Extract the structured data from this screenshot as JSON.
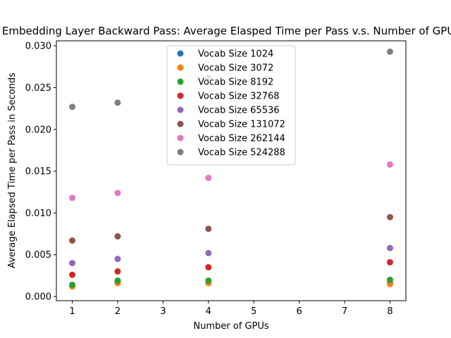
{
  "chart_data": {
    "type": "scatter",
    "title": "Embedding Layer Backward Pass: Average Elasped Time per Pass v.s. Number of GPUs",
    "xlabel": "Number of GPUs",
    "ylabel": "Average Elapsed Time per Pass in Seconds",
    "xlim": [
      0.65,
      8.35
    ],
    "ylim": [
      -0.0005,
      0.0306
    ],
    "xticks": [
      1,
      2,
      3,
      4,
      5,
      6,
      7,
      8
    ],
    "xtick_labels": [
      "1",
      "2",
      "3",
      "4",
      "5",
      "6",
      "7",
      "8"
    ],
    "yticks": [
      0,
      0.005,
      0.01,
      0.015,
      0.02,
      0.025,
      0.03
    ],
    "ytick_labels": [
      "0.000",
      "0.005",
      "0.010",
      "0.015",
      "0.020",
      "0.025",
      "0.030"
    ],
    "grid": false,
    "legend_position": "top-center",
    "x": [
      1,
      2,
      4,
      8
    ],
    "series": [
      {
        "name": "Vocab Size 1024",
        "color": "#1f77b4",
        "values": [
          0.0013,
          0.0017,
          0.0017,
          0.0016
        ]
      },
      {
        "name": "Vocab Size 3072",
        "color": "#ff7f0e",
        "values": [
          0.0012,
          0.0016,
          0.0016,
          0.0015
        ]
      },
      {
        "name": "Vocab Size 8192",
        "color": "#2ca02c",
        "values": [
          0.0014,
          0.0019,
          0.0019,
          0.002
        ]
      },
      {
        "name": "Vocab Size 32768",
        "color": "#d62728",
        "values": [
          0.0026,
          0.003,
          0.0035,
          0.0041
        ]
      },
      {
        "name": "Vocab Size 65536",
        "color": "#9467bd",
        "values": [
          0.004,
          0.0045,
          0.0052,
          0.0058
        ]
      },
      {
        "name": "Vocab Size 131072",
        "color": "#8c564b",
        "values": [
          0.0067,
          0.0072,
          0.0081,
          0.0095
        ]
      },
      {
        "name": "Vocab Size 262144",
        "color": "#e377c2",
        "values": [
          0.0118,
          0.0124,
          0.0142,
          0.0158
        ]
      },
      {
        "name": "Vocab Size 524288",
        "color": "#7f7f7f",
        "values": [
          0.0227,
          0.0232,
          0.0262,
          0.0293
        ]
      }
    ]
  }
}
